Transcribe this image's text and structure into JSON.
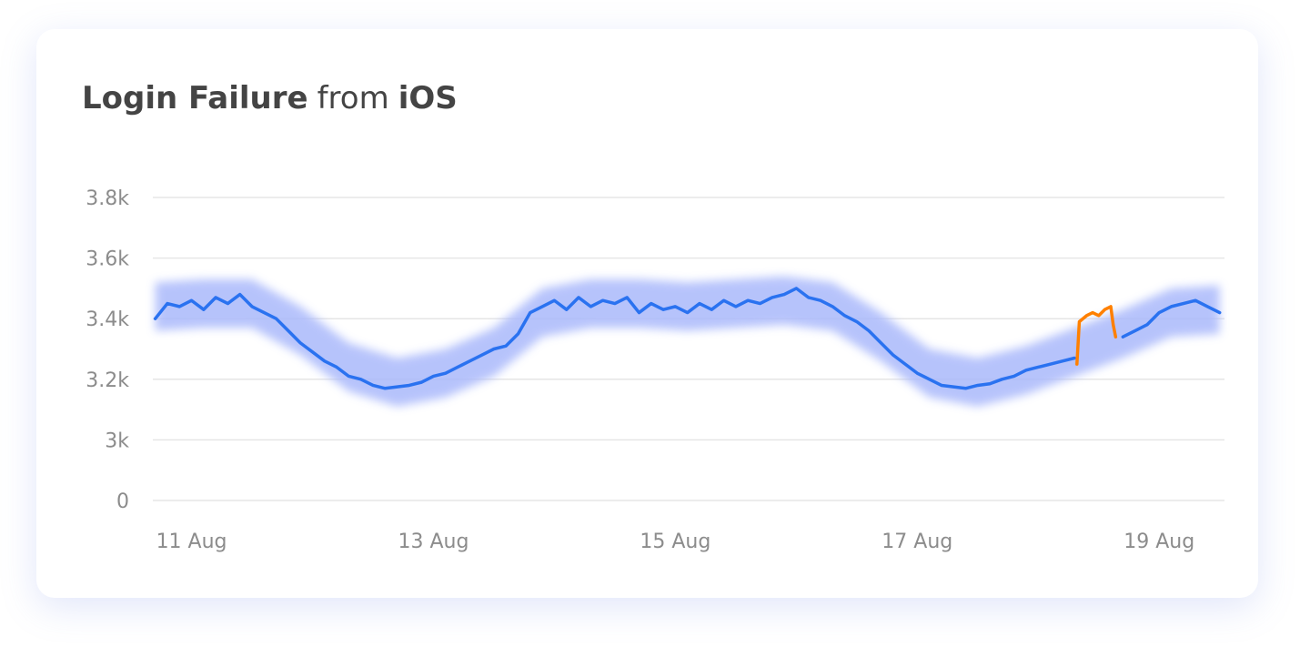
{
  "chart_data": {
    "type": "line",
    "title": [
      "Login Failure",
      "from",
      "iOS"
    ],
    "xlim": [
      10.68,
      19.54
    ],
    "xticks": [
      {
        "value": 11,
        "label": "11 Aug"
      },
      {
        "value": 13,
        "label": "13 Aug"
      },
      {
        "value": 15,
        "label": "15 Aug"
      },
      {
        "value": 17,
        "label": "17 Aug"
      },
      {
        "value": 19,
        "label": "19 Aug"
      }
    ],
    "ylim": [
      0,
      3800
    ],
    "yticks": [
      0,
      {
        "value": 3000,
        "label": "3k"
      },
      {
        "value": 3200,
        "label": "3.2k"
      },
      {
        "value": 3400,
        "label": "3.4k"
      },
      {
        "value": 3600,
        "label": "3.6k"
      },
      {
        "value": 3800,
        "label": "3.8k"
      }
    ],
    "grid": true,
    "band": {
      "color": "#aab9fb",
      "x": [
        10.7,
        11.1,
        11.5,
        11.9,
        12.3,
        12.7,
        13.1,
        13.5,
        13.9,
        14.3,
        14.7,
        15.1,
        15.5,
        15.9,
        16.3,
        16.7,
        17.1,
        17.5,
        17.9,
        18.3,
        18.7,
        19.1,
        19.5
      ],
      "upper": [
        3520,
        3530,
        3530,
        3440,
        3320,
        3270,
        3300,
        3370,
        3500,
        3530,
        3530,
        3520,
        3530,
        3540,
        3520,
        3420,
        3300,
        3270,
        3310,
        3370,
        3430,
        3500,
        3510
      ],
      "lower": [
        3360,
        3370,
        3370,
        3280,
        3160,
        3110,
        3140,
        3210,
        3340,
        3370,
        3370,
        3360,
        3370,
        3380,
        3360,
        3260,
        3140,
        3110,
        3150,
        3210,
        3270,
        3340,
        3350
      ]
    },
    "series": [
      {
        "color": "#2a72f0",
        "x": [
          10.7,
          10.8,
          10.9,
          11.0,
          11.1,
          11.2,
          11.3,
          11.4,
          11.5,
          11.6,
          11.7,
          11.8,
          11.9,
          12.0,
          12.1,
          12.2,
          12.3,
          12.4,
          12.5,
          12.6,
          12.7,
          12.8,
          12.9,
          13.0,
          13.1,
          13.2,
          13.3,
          13.4,
          13.5,
          13.6,
          13.7,
          13.8,
          13.9,
          14.0,
          14.1,
          14.2,
          14.3,
          14.4,
          14.5,
          14.6,
          14.7,
          14.8,
          14.9,
          15.0,
          15.1,
          15.2,
          15.3,
          15.4,
          15.5,
          15.6,
          15.7,
          15.8,
          15.9,
          16.0,
          16.1,
          16.2,
          16.3,
          16.4,
          16.5,
          16.6,
          16.7,
          16.8,
          16.9,
          17.0,
          17.1,
          17.2,
          17.3,
          17.4,
          17.5,
          17.6,
          17.7,
          17.8,
          17.9,
          18.0,
          18.1,
          18.2,
          18.3,
          18.4,
          18.5,
          18.6,
          18.7,
          18.8,
          18.9,
          19.0,
          19.1,
          19.2,
          19.3,
          19.4,
          19.5
        ],
        "values": [
          3400,
          3450,
          3440,
          3460,
          3430,
          3470,
          3450,
          3480,
          3440,
          3420,
          3400,
          3360,
          3320,
          3290,
          3260,
          3240,
          3210,
          3200,
          3180,
          3170,
          3175,
          3180,
          3190,
          3210,
          3220,
          3240,
          3260,
          3280,
          3300,
          3310,
          3350,
          3420,
          3440,
          3460,
          3430,
          3470,
          3440,
          3460,
          3450,
          3470,
          3420,
          3450,
          3430,
          3440,
          3420,
          3450,
          3430,
          3460,
          3440,
          3460,
          3450,
          3470,
          3480,
          3500,
          3470,
          3460,
          3440,
          3410,
          3390,
          3360,
          3320,
          3280,
          3250,
          3220,
          3200,
          3180,
          3175,
          3170,
          3180,
          3185,
          3200,
          3210,
          3230,
          3240,
          3250,
          3260,
          3270,
          null,
          null,
          null,
          3340,
          3360,
          3380,
          3420,
          3440,
          3450,
          3460,
          3440,
          3420
        ]
      },
      {
        "color": "#ff8000",
        "x": [
          18.32,
          18.34,
          18.4,
          18.45,
          18.5,
          18.55,
          18.6,
          18.62,
          18.64
        ],
        "values": [
          3250,
          3390,
          3410,
          3420,
          3410,
          3430,
          3440,
          3380,
          3340
        ]
      }
    ]
  }
}
